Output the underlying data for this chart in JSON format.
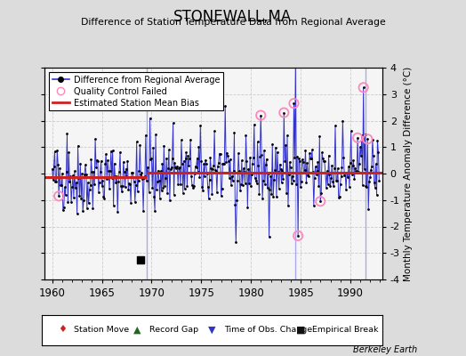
{
  "title": "STONEWALL,MA",
  "subtitle": "Difference of Station Temperature Data from Regional Average",
  "ylabel": "Monthly Temperature Anomaly Difference (°C)",
  "xlabel_years": [
    1960,
    1965,
    1970,
    1975,
    1980,
    1985,
    1990
  ],
  "xlim": [
    1959.2,
    1993.2
  ],
  "ylim": [
    -4,
    4
  ],
  "yticks": [
    -4,
    -3,
    -2,
    -1,
    0,
    1,
    2,
    3,
    4
  ],
  "bg_color": "#dcdcdc",
  "plot_bg_color": "#f5f5f5",
  "line_color": "#3333cc",
  "bias_color": "#cc2222",
  "bias_value_early": -0.15,
  "bias_value_late": 0.05,
  "bias_break": 1969.5,
  "vertical_lines": [
    1969.5,
    1984.5,
    1991.5
  ],
  "vertical_line_color": "#aaaaee",
  "empirical_break_x": 1968.9,
  "empirical_break_y": -3.25,
  "berkeley_earth_text": "Berkeley Earth",
  "seed": 42,
  "num_points": 396,
  "qc_times": [
    1960.7,
    1981.0,
    1983.3,
    1984.3,
    1987.0,
    1984.7,
    1990.7,
    1991.3,
    1991.7
  ],
  "legend_items": [
    {
      "sym": "♦",
      "color": "#cc2222",
      "label": "Station Move"
    },
    {
      "sym": "▲",
      "color": "#226622",
      "label": "Record Gap"
    },
    {
      "sym": "▼",
      "color": "#3333cc",
      "label": "Time of Obs. Change"
    },
    {
      "sym": "■",
      "color": "#111111",
      "label": "Empirical Break"
    }
  ]
}
